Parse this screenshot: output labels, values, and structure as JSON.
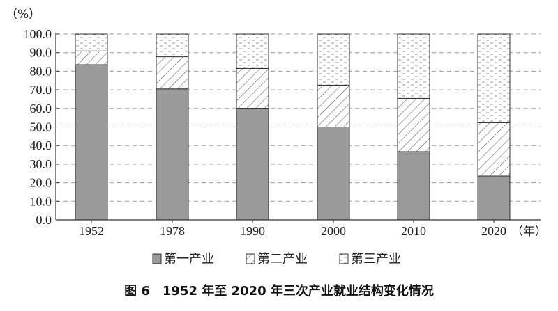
{
  "chart_data": {
    "type": "bar",
    "stacked": true,
    "title": "",
    "caption": "图 6　1952 年至 2020 年三次产业就业结构变化情况",
    "y_unit": "（%）",
    "x_unit": "（年）",
    "categories": [
      "1952",
      "1978",
      "1990",
      "2000",
      "2010",
      "2020"
    ],
    "series": [
      {
        "name": "第一产业",
        "values": [
          83.5,
          70.5,
          60.1,
          50.0,
          36.7,
          23.6
        ],
        "pattern": "solid-gray",
        "color": "#9a9a9a"
      },
      {
        "name": "第二产业",
        "values": [
          7.4,
          17.3,
          21.4,
          22.5,
          28.7,
          28.7
        ],
        "pattern": "diagonal-hatch",
        "color": "#ffffff"
      },
      {
        "name": "第三产业",
        "values": [
          9.1,
          12.2,
          18.5,
          27.5,
          34.6,
          47.7
        ],
        "pattern": "dash-dots",
        "color": "#ffffff"
      }
    ],
    "ylim": [
      0,
      100
    ],
    "yticks": [
      "0.0",
      "10.0",
      "20.0",
      "30.0",
      "40.0",
      "50.0",
      "60.0",
      "70.0",
      "80.0",
      "90.0",
      "100.0"
    ],
    "grid": true,
    "legend_position": "bottom-center"
  }
}
